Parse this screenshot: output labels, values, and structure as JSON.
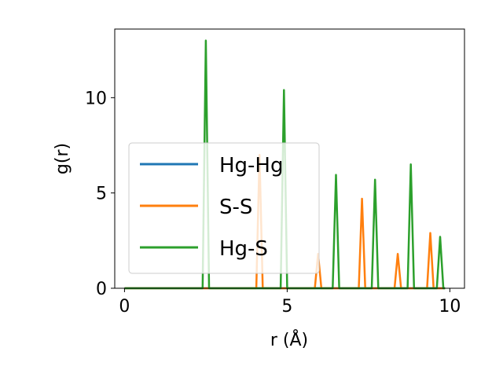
{
  "chart_data": {
    "type": "line",
    "title": "",
    "xlabel": "r (Å)",
    "ylabel": "g(r)",
    "xlim": [
      -0.3,
      10.45
    ],
    "ylim": [
      0,
      13.6
    ],
    "xticks": [
      0,
      5,
      10
    ],
    "xtick_labels": [
      "0",
      "5",
      "10"
    ],
    "yticks": [
      0,
      5,
      10
    ],
    "ytick_labels": [
      "0",
      "5",
      "10"
    ],
    "grid": false,
    "legend_position": "center-left",
    "series": [
      {
        "name": "Hg-Hg",
        "color": "#1f77b4",
        "x": [
          0,
          9.85
        ],
        "y": [
          0,
          0
        ]
      },
      {
        "name": "S-S",
        "color": "#ff7f0e",
        "x": [
          0,
          4.05,
          4.15,
          4.25,
          5.85,
          5.95,
          6.05,
          7.2,
          7.3,
          7.4,
          8.3,
          8.4,
          8.5,
          9.3,
          9.4,
          9.5,
          9.85
        ],
        "y": [
          0,
          0,
          7.0,
          0,
          0,
          1.8,
          0,
          0,
          4.7,
          0,
          0,
          1.8,
          0,
          0,
          2.9,
          0,
          0
        ]
      },
      {
        "name": "Hg-S",
        "color": "#2ca02c",
        "x": [
          0,
          2.4,
          2.5,
          2.6,
          4.8,
          4.9,
          5.0,
          6.4,
          6.5,
          6.6,
          7.6,
          7.7,
          7.8,
          8.7,
          8.8,
          8.9,
          9.6,
          9.7,
          9.8,
          9.85
        ],
        "y": [
          0,
          0,
          13.0,
          0,
          0,
          10.4,
          0,
          0,
          5.95,
          0,
          0,
          5.7,
          0,
          0,
          6.5,
          0,
          0,
          2.7,
          0,
          0
        ]
      }
    ]
  }
}
